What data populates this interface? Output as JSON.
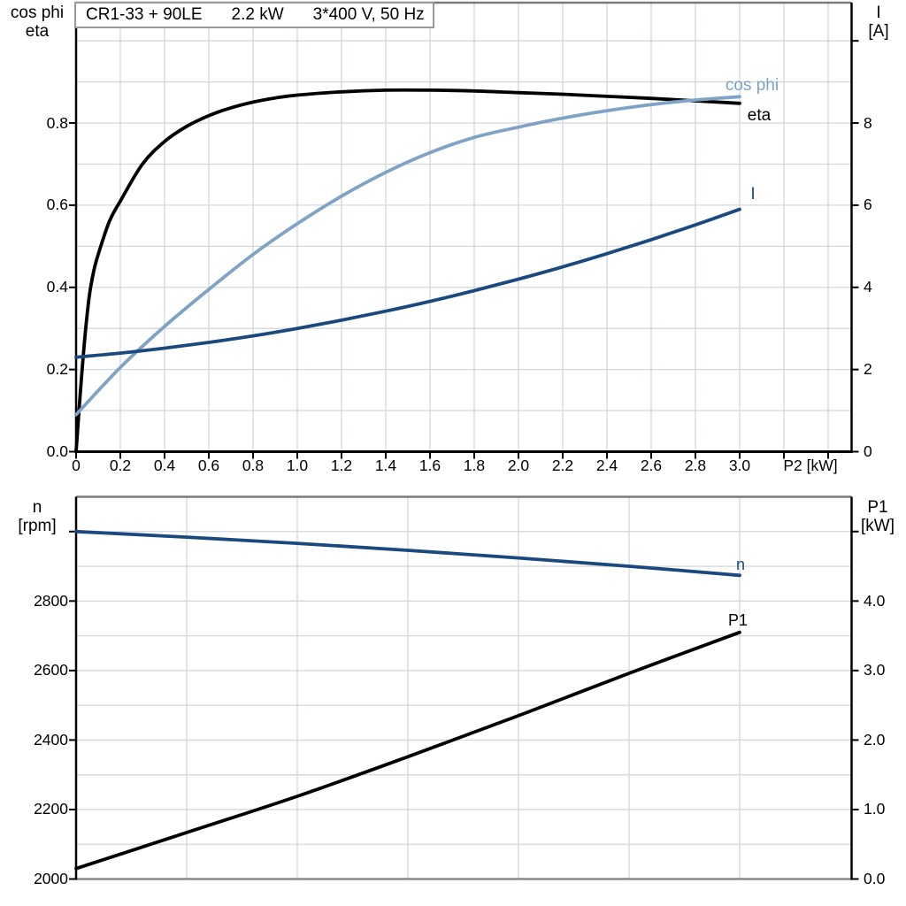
{
  "page": {
    "background": "#FFFFFF"
  },
  "title_box": {
    "parts": [
      "CR1-33 + 90LE",
      "2.2 kW",
      "3*400 V, 50 Hz"
    ]
  },
  "colors": {
    "black": "#000000",
    "dark_blue": "#19497E",
    "light_blue": "#7FA3C6",
    "grid": "#D5D7DB",
    "frame_gray": "#7A7A7A",
    "box_border": "#9A9A9A",
    "text": "#000000",
    "background": "#FFFFFF"
  },
  "top_chart": {
    "left_axis_title_line1": "cos phi",
    "left_axis_title_line2": "eta",
    "right_axis_title_line1": "I",
    "right_axis_title_line2": "[A]",
    "x_axis_title": "P2 [kW]",
    "x_tick_labels": [
      "0",
      "0.2",
      "0.4",
      "0.6",
      "0.8",
      "1.0",
      "1.2",
      "1.4",
      "1.6",
      "1.8",
      "2.0",
      "2.2",
      "2.4",
      "2.6",
      "2.8",
      "3.0"
    ],
    "left_tick_labels": [
      "0.0",
      "0.2",
      "0.4",
      "0.6",
      "0.8"
    ],
    "right_tick_labels": [
      "0",
      "2",
      "4",
      "6",
      "8"
    ],
    "curve_labels": {
      "cos_phi": "cos phi",
      "eta": "eta",
      "current": "I"
    }
  },
  "bottom_chart": {
    "left_axis_title_line1": "n",
    "left_axis_title_line2": "[rpm]",
    "right_axis_title_line1": "P1",
    "right_axis_title_line2": "[kW]",
    "left_tick_labels": [
      "2000",
      "2200",
      "2400",
      "2600",
      "2800"
    ],
    "right_tick_labels": [
      "0.0",
      "1.0",
      "2.0",
      "3.0",
      "4.0"
    ],
    "curve_labels": {
      "n": "n",
      "p1": "P1"
    }
  },
  "chart_data": [
    {
      "type": "line",
      "title": "CR1-33 + 90LE  2.2 kW  3*400 V, 50 Hz",
      "xlabel": "P2 [kW]",
      "x_range": [
        0,
        3.5
      ],
      "x_grid_step": 0.2,
      "x_tick_step": 0.2,
      "grid": true,
      "legend_position": "inline-labels",
      "left_axis": {
        "label": "cos phi / eta",
        "range": [
          0,
          1.093
        ],
        "grid_step": 0.1,
        "labeled_ticks": [
          0,
          0.2,
          0.4,
          0.6,
          0.8
        ]
      },
      "right_axis": {
        "label": "I [A]",
        "range": [
          0,
          10.93
        ],
        "grid_step": 1,
        "labeled_ticks": [
          0,
          2,
          4,
          6,
          8
        ]
      },
      "series": [
        {
          "name": "eta",
          "axis": "left",
          "color_key": "black",
          "x": [
            0,
            0.02,
            0.04,
            0.06,
            0.08,
            0.1,
            0.15,
            0.2,
            0.3,
            0.4,
            0.5,
            0.6,
            0.7,
            0.8,
            0.9,
            1.0,
            1.2,
            1.4,
            1.6,
            1.8,
            2.0,
            2.2,
            2.4,
            2.6,
            2.8,
            3.0
          ],
          "y": [
            0,
            0.15,
            0.28,
            0.38,
            0.44,
            0.48,
            0.56,
            0.61,
            0.7,
            0.755,
            0.792,
            0.818,
            0.837,
            0.851,
            0.861,
            0.868,
            0.876,
            0.88,
            0.88,
            0.878,
            0.874,
            0.87,
            0.865,
            0.86,
            0.854,
            0.848
          ]
        },
        {
          "name": "cos phi",
          "axis": "left",
          "color_key": "light_blue",
          "x": [
            0,
            0.2,
            0.4,
            0.6,
            0.8,
            1.0,
            1.2,
            1.4,
            1.6,
            1.8,
            2.0,
            2.2,
            2.4,
            2.6,
            2.8,
            3.0
          ],
          "y": [
            0.09,
            0.205,
            0.305,
            0.395,
            0.48,
            0.555,
            0.622,
            0.68,
            0.728,
            0.765,
            0.79,
            0.812,
            0.83,
            0.845,
            0.856,
            0.864
          ]
        },
        {
          "name": "I",
          "axis": "right",
          "color_key": "dark_blue",
          "x": [
            0,
            0.2,
            0.4,
            0.6,
            0.8,
            1.0,
            1.2,
            1.4,
            1.6,
            1.8,
            2.0,
            2.2,
            2.4,
            2.6,
            2.8,
            3.0
          ],
          "y": [
            2.3,
            2.4,
            2.52,
            2.66,
            2.82,
            3.0,
            3.2,
            3.42,
            3.66,
            3.92,
            4.2,
            4.5,
            4.82,
            5.16,
            5.52,
            5.9
          ]
        }
      ]
    },
    {
      "type": "line",
      "xlabel": "P2 [kW]",
      "x_range": [
        0,
        3.5
      ],
      "x_grid_step": 0.5,
      "grid": true,
      "legend_position": "inline-labels",
      "left_axis": {
        "label": "n [rpm]",
        "range": [
          2000,
          3100
        ],
        "grid_step": 100,
        "labeled_ticks": [
          2000,
          2200,
          2400,
          2600,
          2800
        ]
      },
      "right_axis": {
        "label": "P1 [kW]",
        "range": [
          0,
          5.5
        ],
        "grid_step": 0.5,
        "labeled_ticks": [
          0,
          1,
          2,
          3,
          4
        ]
      },
      "series": [
        {
          "name": "n",
          "axis": "left",
          "color_key": "dark_blue",
          "x": [
            0,
            0.5,
            1.0,
            1.5,
            2.0,
            2.5,
            3.0
          ],
          "y": [
            3000,
            2984,
            2966,
            2946,
            2924,
            2900,
            2874
          ]
        },
        {
          "name": "P1",
          "axis": "right",
          "color_key": "black",
          "x": [
            0,
            0.5,
            1.0,
            1.5,
            2.0,
            2.5,
            3.0
          ],
          "y": [
            0.15,
            0.67,
            1.19,
            1.76,
            2.35,
            2.96,
            3.55
          ]
        }
      ]
    }
  ]
}
